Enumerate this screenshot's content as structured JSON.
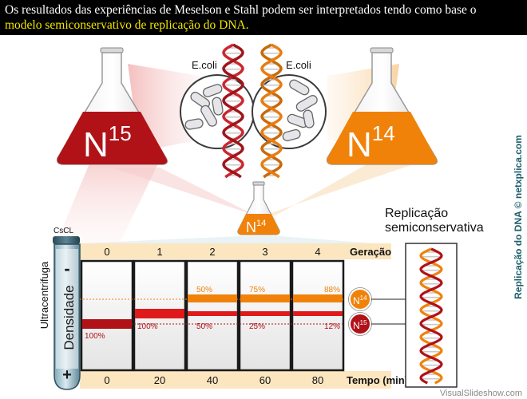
{
  "header": {
    "line1": "Os resultados das experiências de Meselson e Stahl podem ser interpretados tendo como base o",
    "line2": "modelo semiconservativo de replicação do DNA."
  },
  "flasks": {
    "left": {
      "base": "N",
      "sup": "15"
    },
    "right": {
      "base": "N",
      "sup": "14"
    },
    "small": {
      "base": "N",
      "sup": "14"
    }
  },
  "ecoli_left": "E.coli",
  "ecoli_right": "E.coli",
  "tube": {
    "top_label": "CsCL",
    "side_label": "Ultracentrifuga",
    "density_label": "Densidade",
    "minus": "-",
    "plus": "+"
  },
  "generation_label": "Geração",
  "time_label": "Tempo (min)",
  "columns": [
    {
      "gen": "0",
      "time": "0",
      "n14_pct": "",
      "n15_pct": "100%"
    },
    {
      "gen": "1",
      "time": "20",
      "n14_pct": "",
      "n15_pct": "100%"
    },
    {
      "gen": "2",
      "time": "40",
      "n14_pct": "50%",
      "n15_pct": "50%"
    },
    {
      "gen": "3",
      "time": "60",
      "n14_pct": "75%",
      "n15_pct": "25%"
    },
    {
      "gen": "4",
      "time": "80",
      "n14_pct": "88%",
      "n15_pct": "12%"
    }
  ],
  "badges": {
    "n14": {
      "base": "N",
      "sup": "14"
    },
    "n15": {
      "base": "N",
      "sup": "15"
    }
  },
  "replication": {
    "line1": "Replicação",
    "line2": "semiconservativa"
  },
  "credit_vertical": "Replicação do DNA © netxplica.com",
  "watermark": "VisualSlideshow.com",
  "colors": {
    "dark_red": "#b01218",
    "orange": "#f0820a",
    "header_bg": "#000000",
    "highlight_text": "#f2e600",
    "band_strip": "#fbe6bf",
    "credit": "#1b5f6b"
  }
}
